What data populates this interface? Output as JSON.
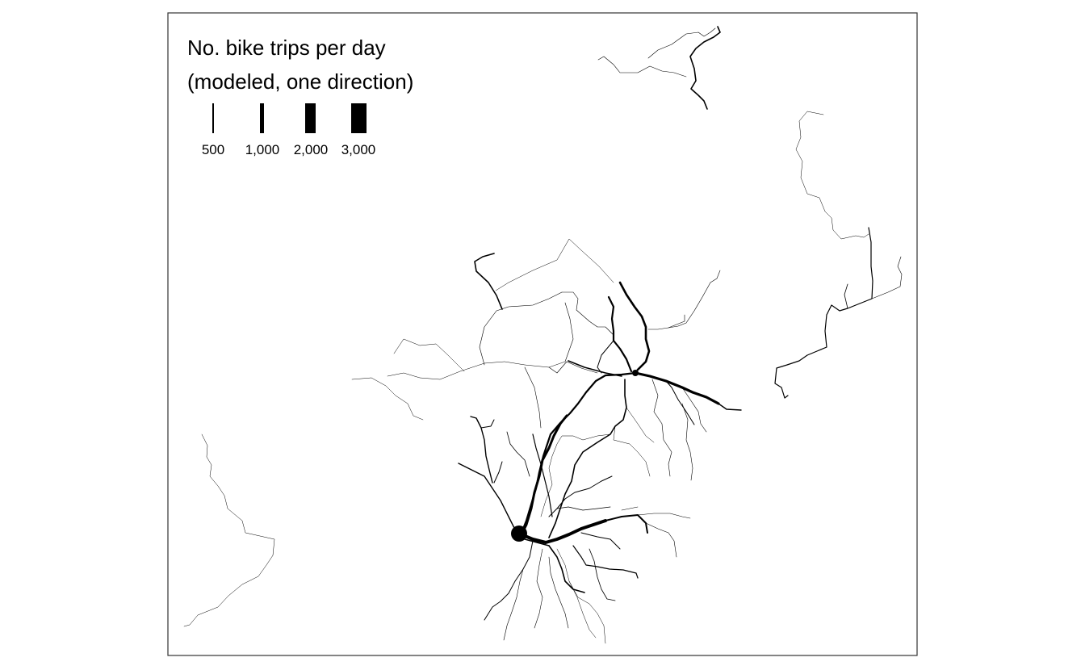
{
  "legend": {
    "title_line1": "No. bike trips per day",
    "title_line2": "(modeled, one direction)",
    "items": [
      {
        "label": "500",
        "value": 500
      },
      {
        "label": "1,000",
        "value": 1000
      },
      {
        "label": "2,000",
        "value": 2000
      },
      {
        "label": "3,000",
        "value": 3000
      }
    ]
  },
  "colors": {
    "background": "#ffffff",
    "frame": "#333333",
    "route": "#000000"
  }
}
